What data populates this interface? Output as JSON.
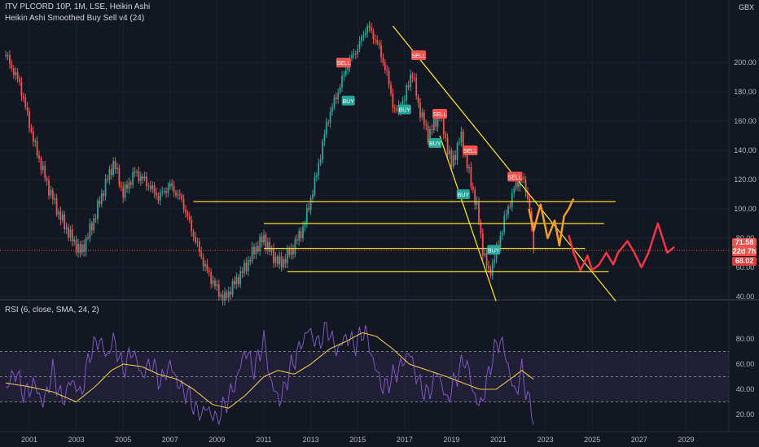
{
  "header": {
    "symbol_line": "ITV PLCORD 10P, 1M, LSE, Heikin Ashi",
    "indicator_line": "Heikin Ashi Smoothed Buy Sell v4 (24)",
    "currency": "GBX"
  },
  "rsi_panel": {
    "label": "RSI (6, close, SMA, 24, 2)"
  },
  "price_tags": {
    "last": "71.58",
    "countdown": "22d 7h",
    "low": "68.02"
  },
  "colors": {
    "background": "#131722",
    "bull": "#26a69a",
    "bear": "#ef5350",
    "trendline": "#f5e027",
    "rsi_line": "#7e57c2",
    "rsi_ma": "#e8c34a",
    "projection_orange": "#f39c2b",
    "projection_red": "#f23645"
  },
  "chart_data": [
    {
      "type": "candlestick",
      "title": "ITV PLCORD 10P, 1M, LSE, Heikin Ashi",
      "x_range": [
        2000,
        2030
      ],
      "x_ticks": [
        "2001",
        "2003",
        "2005",
        "2007",
        "2009",
        "2011",
        "2013",
        "2015",
        "2017",
        "2019",
        "2021",
        "2023",
        "2025",
        "2027",
        "2029"
      ],
      "ylim": [
        36,
        230
      ],
      "y_ticks": [
        40,
        60,
        80,
        100,
        120,
        140,
        160,
        180,
        200
      ],
      "y_tick_labels": [
        "40.00",
        "60.00",
        "80.00",
        "100.00",
        "120.00",
        "140.00",
        "160.00",
        "180.00",
        "200.00"
      ],
      "close_series": [
        [
          2000.0,
          205
        ],
        [
          2000.6,
          185
        ],
        [
          2001.2,
          145
        ],
        [
          2001.8,
          115
        ],
        [
          2002.3,
          95
        ],
        [
          2002.8,
          80
        ],
        [
          2003.2,
          70
        ],
        [
          2003.7,
          90
        ],
        [
          2004.2,
          115
        ],
        [
          2004.6,
          132
        ],
        [
          2005.0,
          110
        ],
        [
          2005.5,
          125
        ],
        [
          2006.0,
          118
        ],
        [
          2006.5,
          108
        ],
        [
          2007.0,
          116
        ],
        [
          2007.5,
          106
        ],
        [
          2008.0,
          82
        ],
        [
          2008.5,
          60
        ],
        [
          2009.0,
          45
        ],
        [
          2009.3,
          38
        ],
        [
          2009.7,
          48
        ],
        [
          2010.2,
          60
        ],
        [
          2010.6,
          72
        ],
        [
          2011.0,
          80
        ],
        [
          2011.3,
          70
        ],
        [
          2011.7,
          62
        ],
        [
          2012.2,
          72
        ],
        [
          2012.7,
          88
        ],
        [
          2013.2,
          120
        ],
        [
          2013.7,
          160
        ],
        [
          2014.2,
          182
        ],
        [
          2014.6,
          200
        ],
        [
          2015.0,
          210
        ],
        [
          2015.4,
          225
        ],
        [
          2015.8,
          215
        ],
        [
          2016.2,
          195
        ],
        [
          2016.6,
          165
        ],
        [
          2017.0,
          175
        ],
        [
          2017.3,
          195
        ],
        [
          2017.6,
          170
        ],
        [
          2018.0,
          150
        ],
        [
          2018.5,
          165
        ],
        [
          2019.0,
          130
        ],
        [
          2019.4,
          150
        ],
        [
          2019.8,
          120
        ],
        [
          2020.1,
          100
        ],
        [
          2020.3,
          75
        ],
        [
          2020.6,
          55
        ],
        [
          2020.9,
          70
        ],
        [
          2021.3,
          95
        ],
        [
          2021.7,
          115
        ],
        [
          2022.0,
          122
        ],
        [
          2022.3,
          105
        ],
        [
          2022.5,
          71.58
        ]
      ],
      "signals": [
        {
          "label": "SELL",
          "date": 2014.4,
          "price": 200
        },
        {
          "label": "BUY",
          "date": 2014.6,
          "price": 174
        },
        {
          "label": "SELL",
          "date": 2017.6,
          "price": 205
        },
        {
          "label": "BUY",
          "date": 2017.0,
          "price": 168
        },
        {
          "label": "SELL",
          "date": 2018.5,
          "price": 165
        },
        {
          "label": "BUY",
          "date": 2018.3,
          "price": 145
        },
        {
          "label": "SELL",
          "date": 2019.8,
          "price": 140
        },
        {
          "label": "BUY",
          "date": 2019.5,
          "price": 110
        },
        {
          "label": "BUY",
          "date": 2020.8,
          "price": 72
        },
        {
          "label": "SELL",
          "date": 2021.7,
          "price": 122
        }
      ],
      "horizontal_levels": [
        {
          "price": 105,
          "from": 2008.0,
          "to": 2026.0
        },
        {
          "price": 90,
          "from": 2011.0,
          "to": 2025.5
        },
        {
          "price": 73,
          "from": 2011.0,
          "to": 2024.7
        },
        {
          "price": 57,
          "from": 2012.0,
          "to": 2025.7
        }
      ],
      "trendlines": [
        [
          [
            2016.5,
            225
          ],
          [
            2026.0,
            37
          ]
        ],
        [
          [
            2018.5,
            150
          ],
          [
            2020.9,
            37
          ]
        ]
      ],
      "projection_orange": [
        [
          2022.3,
          100
        ],
        [
          2022.5,
          85
        ],
        [
          2022.8,
          103
        ],
        [
          2023.1,
          80
        ],
        [
          2023.4,
          92
        ],
        [
          2023.6,
          75
        ],
        [
          2023.8,
          95
        ],
        [
          2024.0,
          100
        ],
        [
          2024.2,
          107
        ]
      ],
      "projection_red": [
        [
          2024.0,
          82
        ],
        [
          2024.2,
          70
        ],
        [
          2024.5,
          58
        ],
        [
          2024.8,
          68
        ],
        [
          2025.0,
          58
        ],
        [
          2025.3,
          62
        ],
        [
          2025.6,
          70
        ],
        [
          2025.9,
          62
        ],
        [
          2026.1,
          70
        ],
        [
          2026.5,
          78
        ],
        [
          2026.8,
          70
        ],
        [
          2027.1,
          60
        ],
        [
          2027.4,
          70
        ],
        [
          2027.8,
          90
        ],
        [
          2028.2,
          70
        ],
        [
          2028.5,
          74
        ]
      ],
      "last_price": 71.58
    },
    {
      "type": "line",
      "title": "RSI (6, close, SMA, 24, 2)",
      "ylim": [
        10,
        95
      ],
      "y_ticks": [
        20,
        40,
        60,
        80
      ],
      "y_tick_labels": [
        "20.00",
        "40.00",
        "60.00",
        "80.00"
      ],
      "levels": [
        70,
        50,
        30
      ],
      "series": [
        {
          "values": [
            [
              2000.0,
              40
            ],
            [
              2000.4,
              55
            ],
            [
              2000.8,
              35
            ],
            [
              2001.2,
              45
            ],
            [
              2001.6,
              28
            ],
            [
              2002.0,
              55
            ],
            [
              2002.4,
              30
            ],
            [
              2002.8,
              48
            ],
            [
              2003.2,
              35
            ],
            [
              2003.6,
              70
            ],
            [
              2004.0,
              80
            ],
            [
              2004.3,
              65
            ],
            [
              2004.6,
              80
            ],
            [
              2005.0,
              55
            ],
            [
              2005.4,
              72
            ],
            [
              2005.8,
              50
            ],
            [
              2006.2,
              62
            ],
            [
              2006.6,
              45
            ],
            [
              2007.0,
              60
            ],
            [
              2007.4,
              42
            ],
            [
              2007.8,
              35
            ],
            [
              2008.2,
              20
            ],
            [
              2008.6,
              25
            ],
            [
              2009.0,
              15
            ],
            [
              2009.4,
              30
            ],
            [
              2009.8,
              45
            ],
            [
              2010.2,
              72
            ],
            [
              2010.6,
              55
            ],
            [
              2011.0,
              80
            ],
            [
              2011.3,
              45
            ],
            [
              2011.7,
              30
            ],
            [
              2012.1,
              55
            ],
            [
              2012.5,
              72
            ],
            [
              2012.9,
              88
            ],
            [
              2013.3,
              75
            ],
            [
              2013.7,
              90
            ],
            [
              2014.1,
              70
            ],
            [
              2014.5,
              82
            ],
            [
              2014.9,
              75
            ],
            [
              2015.3,
              88
            ],
            [
              2015.7,
              60
            ],
            [
              2016.1,
              40
            ],
            [
              2016.5,
              50
            ],
            [
              2016.9,
              60
            ],
            [
              2017.2,
              70
            ],
            [
              2017.6,
              45
            ],
            [
              2018.0,
              35
            ],
            [
              2018.4,
              55
            ],
            [
              2018.8,
              30
            ],
            [
              2019.2,
              50
            ],
            [
              2019.6,
              65
            ],
            [
              2019.9,
              40
            ],
            [
              2020.2,
              25
            ],
            [
              2020.5,
              45
            ],
            [
              2020.8,
              70
            ],
            [
              2021.1,
              80
            ],
            [
              2021.4,
              60
            ],
            [
              2021.7,
              35
            ],
            [
              2022.0,
              55
            ],
            [
              2022.3,
              30
            ],
            [
              2022.5,
              17
            ]
          ]
        },
        {
          "values": [
            [
              2000.0,
              45
            ],
            [
              2001.0,
              42
            ],
            [
              2002.0,
              38
            ],
            [
              2003.0,
              30
            ],
            [
              2003.8,
              42
            ],
            [
              2004.5,
              55
            ],
            [
              2005.0,
              60
            ],
            [
              2005.8,
              58
            ],
            [
              2006.5,
              52
            ],
            [
              2007.3,
              48
            ],
            [
              2008.0,
              40
            ],
            [
              2008.8,
              28
            ],
            [
              2009.5,
              25
            ],
            [
              2010.2,
              35
            ],
            [
              2011.0,
              50
            ],
            [
              2011.6,
              55
            ],
            [
              2012.3,
              52
            ],
            [
              2013.0,
              60
            ],
            [
              2013.8,
              72
            ],
            [
              2014.5,
              78
            ],
            [
              2015.2,
              85
            ],
            [
              2015.8,
              82
            ],
            [
              2016.5,
              72
            ],
            [
              2017.2,
              60
            ],
            [
              2018.0,
              55
            ],
            [
              2018.8,
              50
            ],
            [
              2019.5,
              45
            ],
            [
              2020.2,
              40
            ],
            [
              2020.9,
              40
            ],
            [
              2021.5,
              48
            ],
            [
              2022.0,
              55
            ],
            [
              2022.5,
              48
            ]
          ]
        }
      ]
    }
  ]
}
